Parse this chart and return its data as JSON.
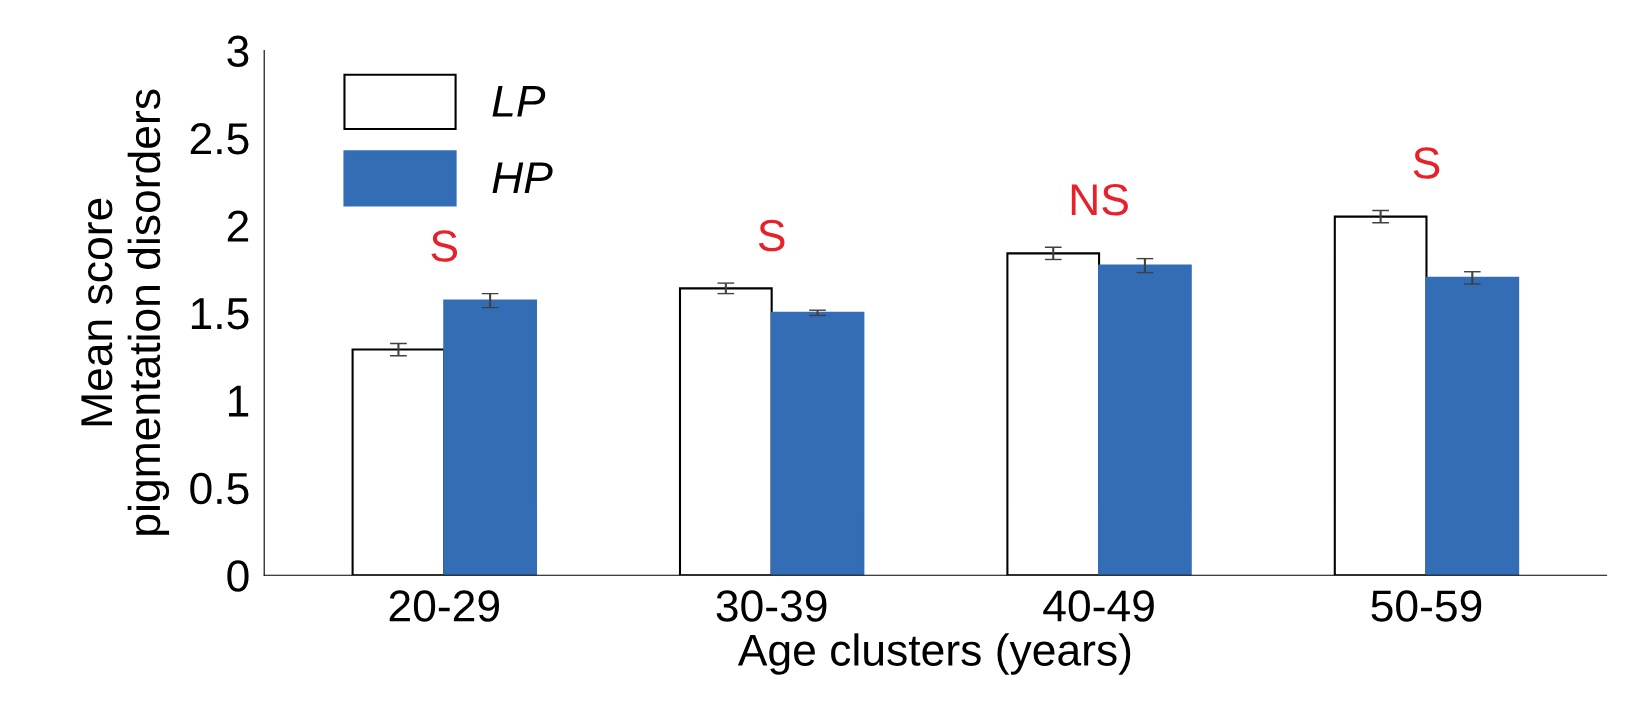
{
  "chart_data": {
    "type": "bar",
    "xlabel": "Age clusters (years)",
    "ylabel": "Mean score\npigmentation disorders",
    "categories": [
      "20-29",
      "30-39",
      "40-49",
      "50-59"
    ],
    "series": [
      {
        "name": "LP",
        "color": "#ffffff",
        "values": [
          1.29,
          1.64,
          1.84,
          2.05
        ],
        "errors": [
          0.035,
          0.03,
          0.035,
          0.035
        ]
      },
      {
        "name": "HP",
        "color": "#336db5",
        "values": [
          1.57,
          1.5,
          1.77,
          1.7
        ],
        "errors": [
          0.04,
          0.015,
          0.04,
          0.035
        ]
      }
    ],
    "ylim": [
      0,
      3
    ],
    "yticks": [
      0,
      0.5,
      1,
      1.5,
      2,
      2.5,
      3
    ],
    "grid": false,
    "legend": "top left",
    "annotations": [
      "S",
      "S",
      "NS",
      "S"
    ]
  }
}
